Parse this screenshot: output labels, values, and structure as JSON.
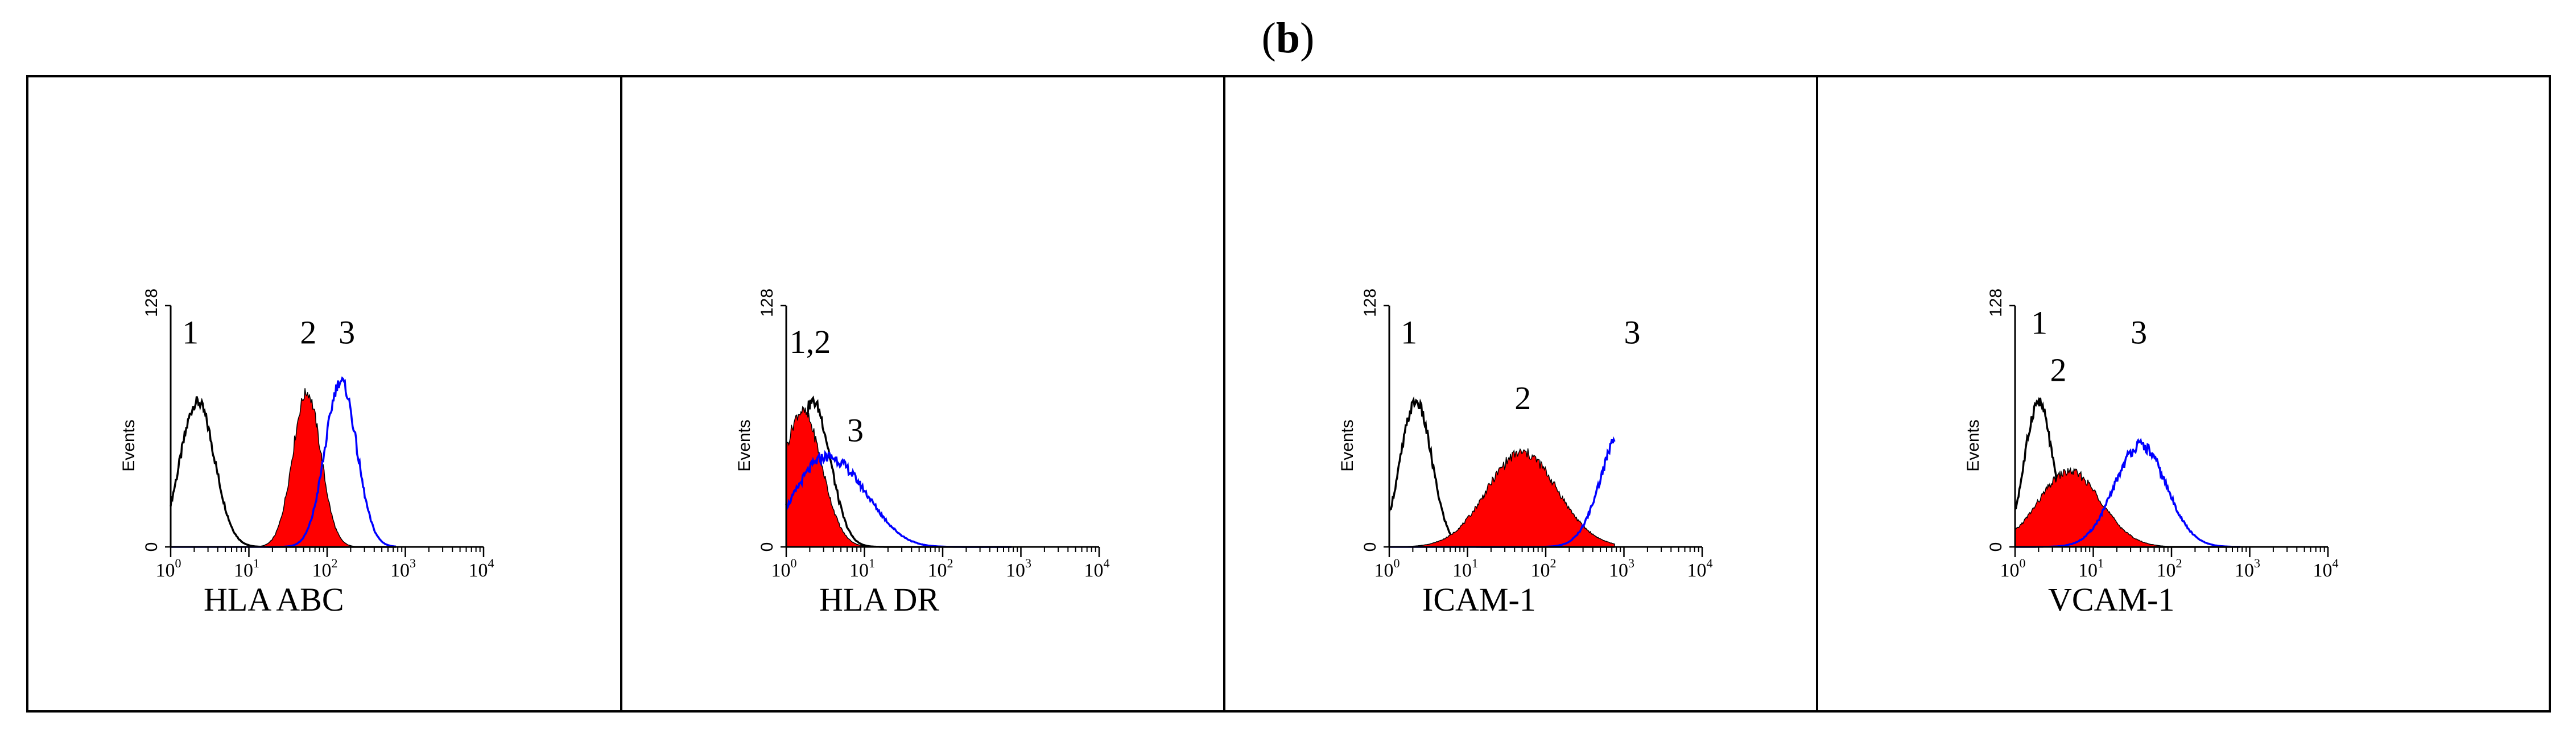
{
  "figure": {
    "label_open": "(",
    "label_letter": "b",
    "label_close": ")"
  },
  "colors": {
    "isotype": "#000000",
    "unstimulated_fill": "#ff0000",
    "stimulated": "#0000ff"
  },
  "chart_data": [
    {
      "type": "histogram",
      "title": "",
      "xlabel": "HLA ABC",
      "ylabel": "Events",
      "xscale": "log",
      "xlim": [
        1,
        10000
      ],
      "ylim": [
        0,
        128
      ],
      "yticks": [
        "0",
        "128"
      ],
      "xticks": [
        {
          "base": "10",
          "exp": "0"
        },
        {
          "base": "10",
          "exp": "1"
        },
        {
          "base": "10",
          "exp": "2"
        },
        {
          "base": "10",
          "exp": "3"
        },
        {
          "base": "10",
          "exp": "4"
        }
      ],
      "annotations": [
        {
          "text": "1",
          "x": 1.4,
          "y": 108
        },
        {
          "text": "2",
          "x": 45,
          "y": 108
        },
        {
          "text": "3",
          "x": 140,
          "y": 108
        }
      ],
      "series": [
        {
          "name": "1",
          "style": "black-line",
          "peaks": [
            {
              "center": 2.2,
              "height": 77,
              "width": 0.22
            }
          ]
        },
        {
          "name": "2",
          "style": "red-fill",
          "peaks": [
            {
              "center": 55,
              "height": 82,
              "width": 0.18
            }
          ]
        },
        {
          "name": "3",
          "style": "blue-line",
          "peaks": [
            {
              "center": 150,
              "height": 88,
              "width": 0.2
            }
          ]
        }
      ]
    },
    {
      "type": "histogram",
      "title": "",
      "xlabel": "HLA DR",
      "ylabel": "Events",
      "xscale": "log",
      "xlim": [
        1,
        10000
      ],
      "ylim": [
        0,
        128
      ],
      "yticks": [
        "0",
        "128"
      ],
      "xticks": [
        {
          "base": "10",
          "exp": "0"
        },
        {
          "base": "10",
          "exp": "1"
        },
        {
          "base": "10",
          "exp": "2"
        },
        {
          "base": "10",
          "exp": "3"
        },
        {
          "base": "10",
          "exp": "4"
        }
      ],
      "annotations": [
        {
          "text": "1,2",
          "x": 1.1,
          "y": 103
        },
        {
          "text": "3",
          "x": 6,
          "y": 56
        }
      ],
      "series": [
        {
          "name": "1",
          "style": "black-line",
          "peaks": [
            {
              "center": 2.2,
              "height": 77,
              "width": 0.22
            }
          ]
        },
        {
          "name": "2",
          "style": "red-fill",
          "peaks": [
            {
              "center": 1.6,
              "height": 72,
              "width": 0.25
            }
          ]
        },
        {
          "name": "3",
          "style": "blue-line",
          "peaks": [
            {
              "center": 2.5,
              "height": 38,
              "width": 0.35
            },
            {
              "center": 8,
              "height": 22,
              "width": 0.35
            }
          ]
        }
      ]
    },
    {
      "type": "histogram",
      "title": "",
      "xlabel": "ICAM-1",
      "ylabel": "Events",
      "xscale": "log",
      "xlim": [
        1,
        10000
      ],
      "ylim": [
        0,
        128
      ],
      "yticks": [
        "0",
        "128"
      ],
      "xticks": [
        {
          "base": "10",
          "exp": "0"
        },
        {
          "base": "10",
          "exp": "1"
        },
        {
          "base": "10",
          "exp": "2"
        },
        {
          "base": "10",
          "exp": "3"
        },
        {
          "base": "10",
          "exp": "4"
        }
      ],
      "annotations": [
        {
          "text": "1",
          "x": 1.4,
          "y": 108
        },
        {
          "text": "2",
          "x": 40,
          "y": 73
        },
        {
          "text": "3",
          "x": 1000,
          "y": 108
        }
      ],
      "series": [
        {
          "name": "1",
          "style": "black-line",
          "peaks": [
            {
              "center": 2.2,
              "height": 77,
              "width": 0.2
            }
          ]
        },
        {
          "name": "2",
          "style": "red-fill",
          "peaks": [
            {
              "center": 50,
              "height": 50,
              "width": 0.45
            }
          ]
        },
        {
          "name": "3",
          "style": "blue-line",
          "peaks": [
            {
              "center": 1000,
              "height": 64,
              "width": 0.28
            }
          ]
        }
      ]
    },
    {
      "type": "histogram",
      "title": "",
      "xlabel": "VCAM-1",
      "ylabel": "Events",
      "xscale": "log",
      "xlim": [
        1,
        10000
      ],
      "ylim": [
        0,
        128
      ],
      "yticks": [
        "0",
        "128"
      ],
      "xticks": [
        {
          "base": "10",
          "exp": "0"
        },
        {
          "base": "10",
          "exp": "1"
        },
        {
          "base": "10",
          "exp": "2"
        },
        {
          "base": "10",
          "exp": "3"
        },
        {
          "base": "10",
          "exp": "4"
        }
      ],
      "annotations": [
        {
          "text": "1",
          "x": 1.6,
          "y": 113
        },
        {
          "text": "2",
          "x": 2.8,
          "y": 88
        },
        {
          "text": "3",
          "x": 30,
          "y": 108
        }
      ],
      "series": [
        {
          "name": "1",
          "style": "black-line",
          "peaks": [
            {
              "center": 2.0,
              "height": 77,
              "width": 0.18
            }
          ]
        },
        {
          "name": "2",
          "style": "red-fill",
          "peaks": [
            {
              "center": 5,
              "height": 40,
              "width": 0.4
            }
          ]
        },
        {
          "name": "3",
          "style": "blue-line",
          "peaks": [
            {
              "center": 40,
              "height": 54,
              "width": 0.33
            }
          ]
        }
      ]
    }
  ]
}
